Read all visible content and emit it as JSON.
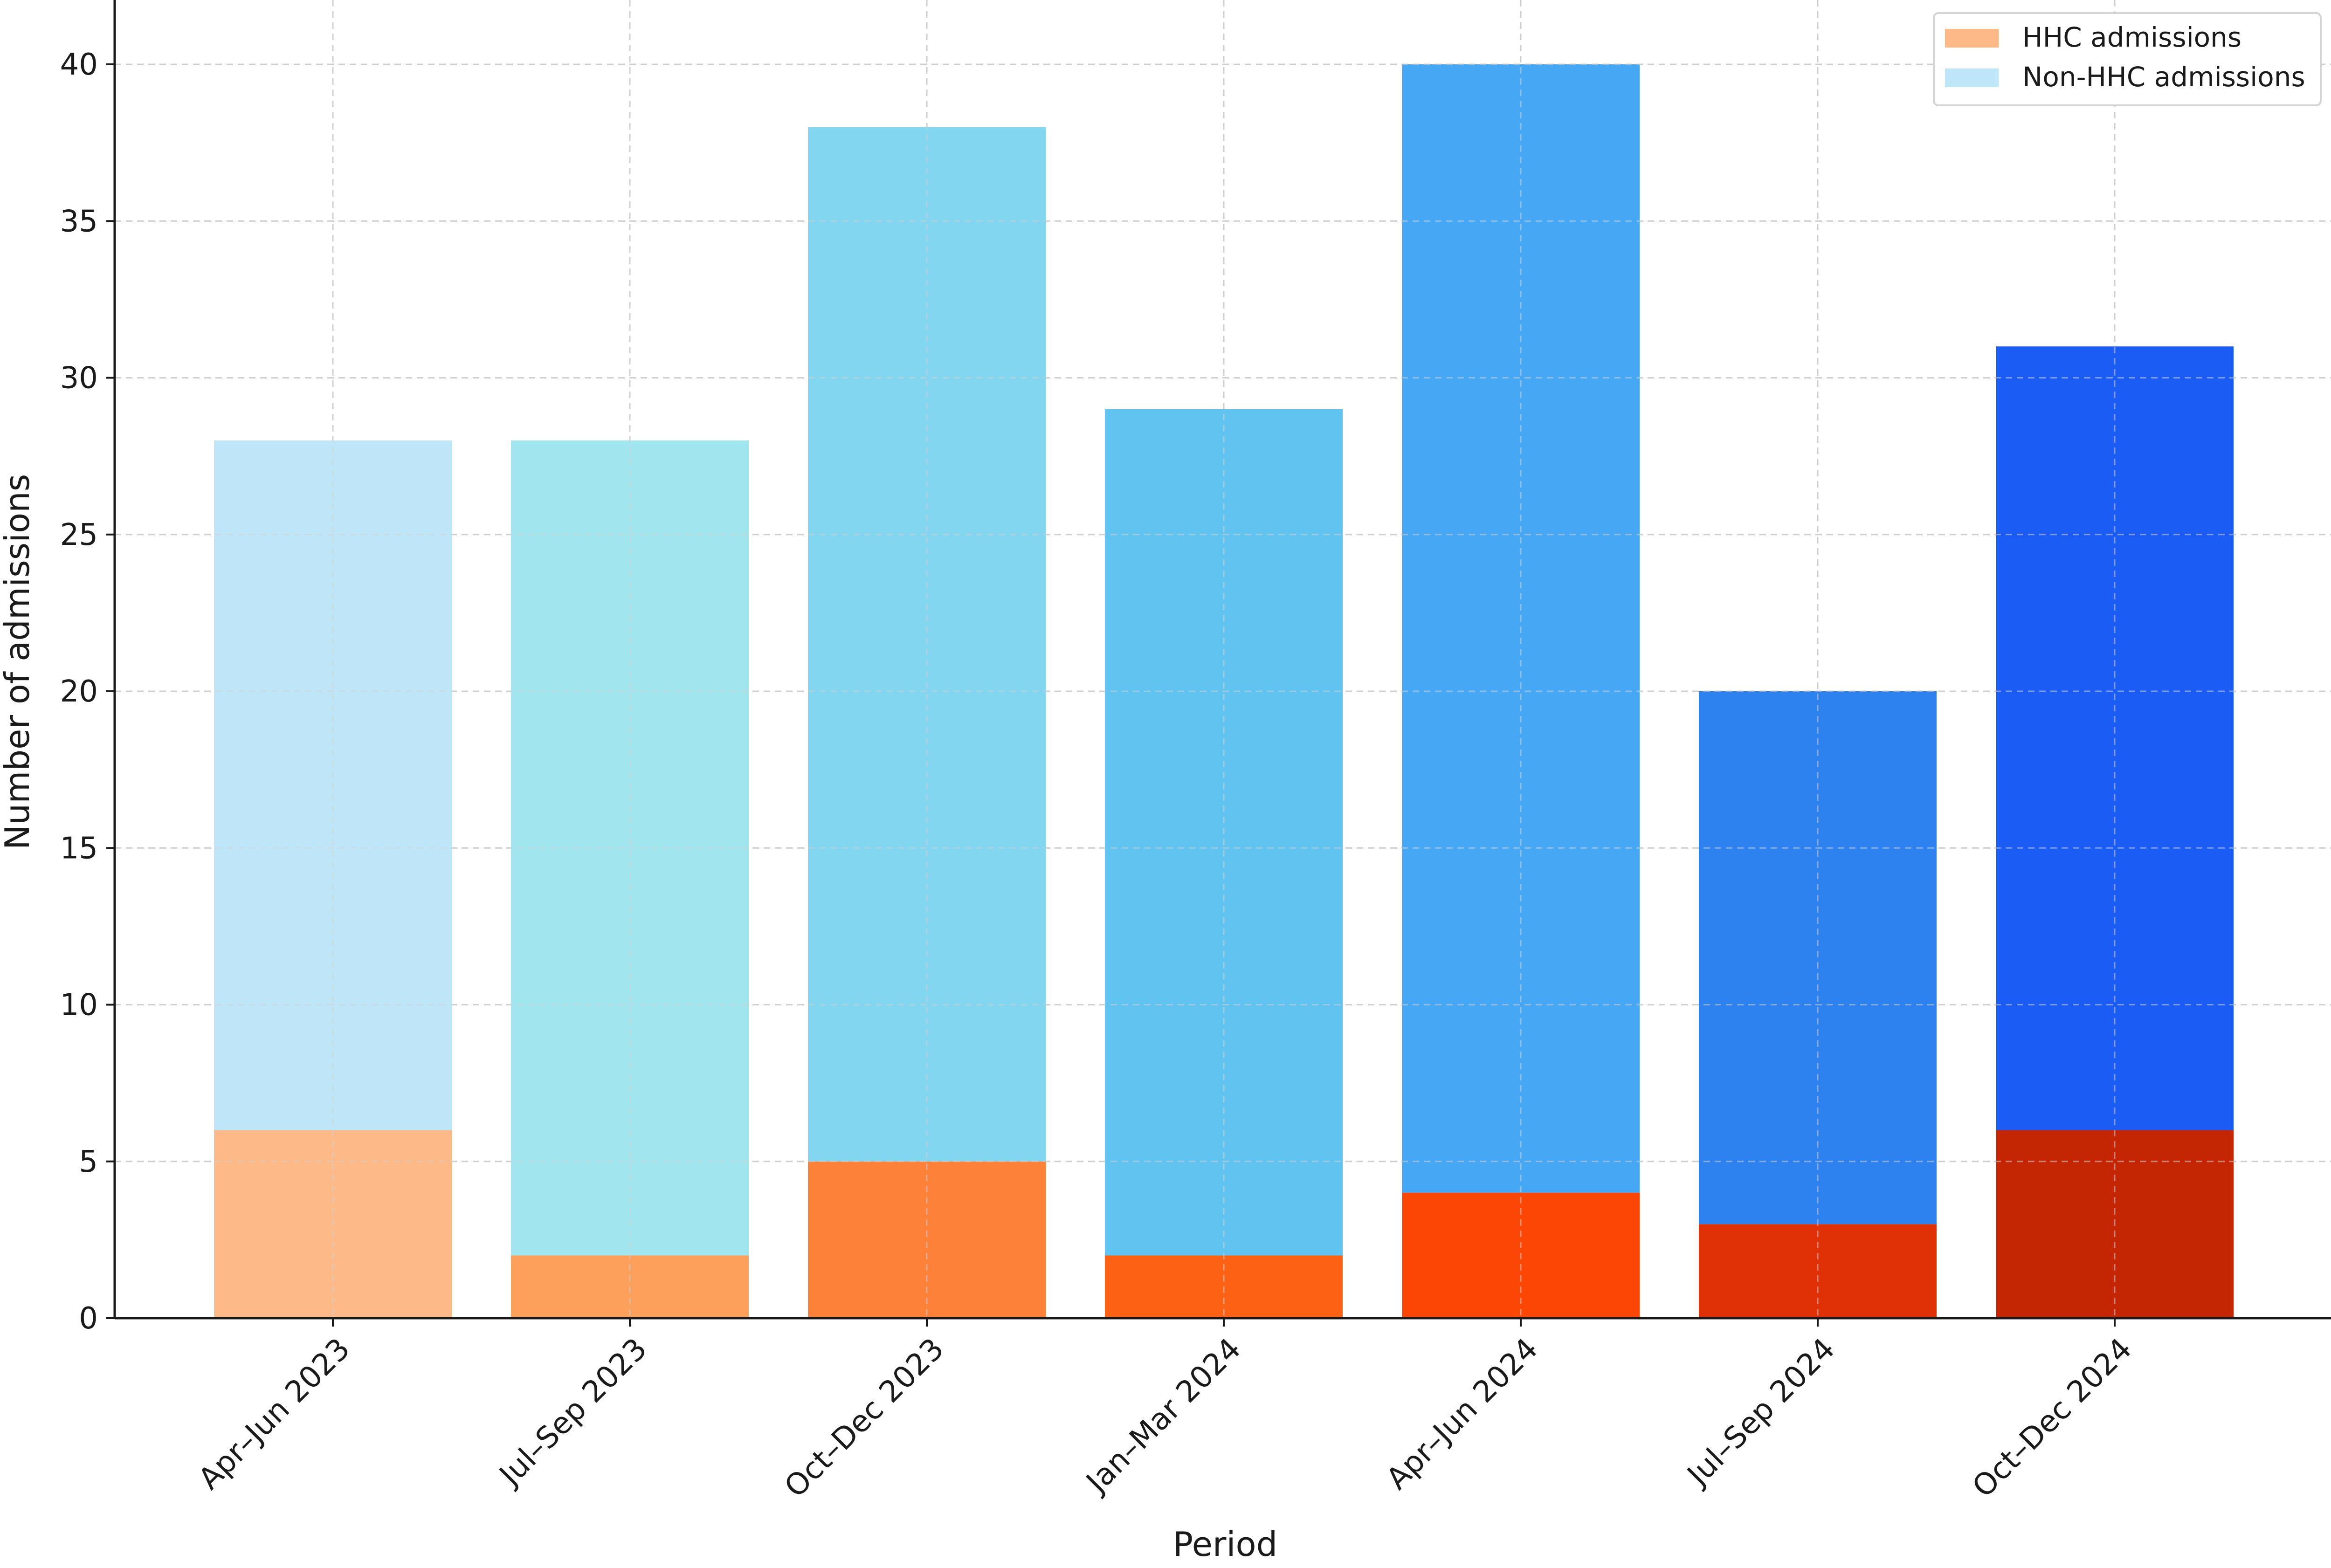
{
  "chart_data": {
    "type": "bar",
    "stacked": true,
    "title": "",
    "xlabel": "Period",
    "ylabel": "Number of admissions",
    "ylim": [
      0,
      42
    ],
    "yticks": [
      0,
      5,
      10,
      15,
      20,
      25,
      30,
      35,
      40
    ],
    "grid": true,
    "legend_position": "top-right",
    "categories": [
      "Apr–Jun 2023",
      "Jul–Sep 2023",
      "Oct–Dec 2023",
      "Jan–Mar 2024",
      "Apr–Jun 2024",
      "Jul–Sep 2024",
      "Oct–Dec 2024"
    ],
    "series": [
      {
        "name": "HHC admissions",
        "values": [
          6,
          2,
          5,
          2,
          4,
          3,
          6
        ],
        "colors": [
          "#fdb987",
          "#fca05c",
          "#fd8138",
          "#fd6214",
          "#fb4605",
          "#e03005",
          "#c42502"
        ],
        "legend_color": "#fdb987"
      },
      {
        "name": "Non-HHC admissions",
        "values": [
          22,
          26,
          33,
          27,
          36,
          17,
          25
        ],
        "colors": [
          "#bfe6f8",
          "#a1e6ef",
          "#82d6f0",
          "#61c3ef",
          "#46a7f4",
          "#2d82ef",
          "#1a5cf4"
        ],
        "legend_color": "#bfe6f8"
      }
    ]
  }
}
